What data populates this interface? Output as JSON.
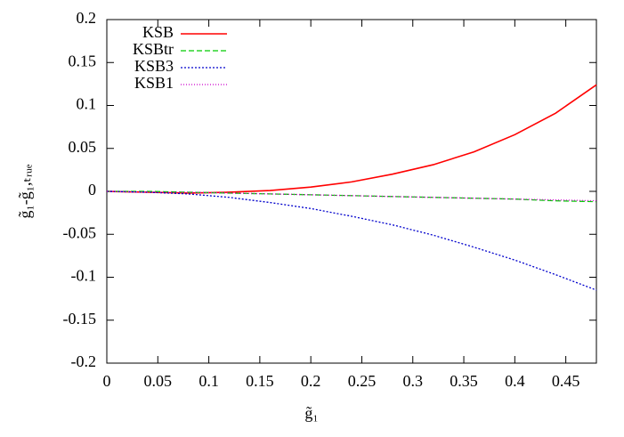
{
  "chart_data": {
    "type": "line",
    "xlabel": "g̃₁",
    "ylabel": "g̃₁-g̃₁,ₜᵣᵤₑ",
    "x": [
      0,
      0.04,
      0.08,
      0.12,
      0.16,
      0.2,
      0.24,
      0.28,
      0.32,
      0.36,
      0.4,
      0.44,
      0.48
    ],
    "series": [
      {
        "name": "KSB",
        "color": "#ff0000",
        "dash": "none",
        "values": [
          0,
          -0.001,
          -0.002,
          -0.001,
          0.001,
          0.005,
          0.011,
          0.02,
          0.031,
          0.046,
          0.066,
          0.091,
          0.124
        ]
      },
      {
        "name": "KSBtr",
        "color": "#00cc00",
        "dash": "6,3",
        "values": [
          0,
          0,
          -0.001,
          -0.002,
          -0.003,
          -0.004,
          -0.005,
          -0.006,
          -0.007,
          -0.008,
          -0.009,
          -0.011,
          -0.012
        ]
      },
      {
        "name": "KSB3",
        "color": "#0000cc",
        "dash": "2,2",
        "values": [
          0,
          -0.001,
          -0.003,
          -0.007,
          -0.013,
          -0.02,
          -0.029,
          -0.039,
          -0.051,
          -0.065,
          -0.08,
          -0.097,
          -0.115
        ]
      },
      {
        "name": "KSB1",
        "color": "#cc00cc",
        "dash": "1,2",
        "values": [
          0,
          -0.001,
          -0.001,
          -0.002,
          -0.003,
          -0.004,
          -0.005,
          -0.006,
          -0.007,
          -0.008,
          -0.009,
          -0.01,
          -0.011
        ]
      }
    ],
    "xlim": [
      0,
      0.48
    ],
    "xticks": [
      0,
      0.05,
      0.1,
      0.15,
      0.2,
      0.25,
      0.3,
      0.35,
      0.4,
      0.45
    ],
    "ylim": [
      -0.2,
      0.2
    ],
    "yticks": [
      -0.2,
      -0.15,
      -0.1,
      -0.05,
      0,
      0.05,
      0.1,
      0.15,
      0.2
    ],
    "legend": "top-left"
  }
}
